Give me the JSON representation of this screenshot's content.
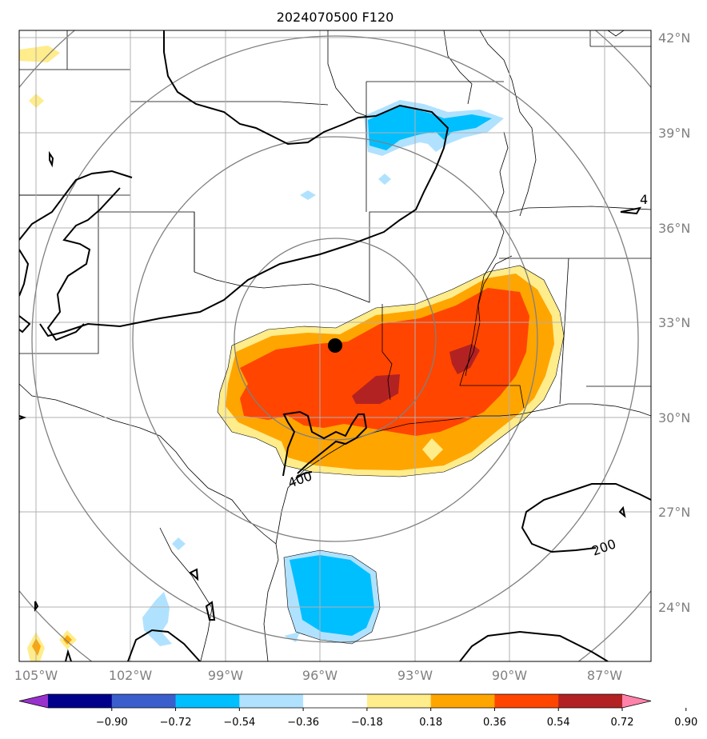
{
  "title": "2024070500 F120",
  "lat_labels": [
    "42°N",
    "39°N",
    "36°N",
    "33°N",
    "30°N",
    "27°N",
    "24°N"
  ],
  "lon_labels": [
    "105°W",
    "102°W",
    "99°W",
    "96°W",
    "93°W",
    "90°W",
    "87°W"
  ],
  "colorbar": {
    "ticks": [
      "−0.90",
      "−0.72",
      "−0.54",
      "−0.36",
      "−0.18",
      "0.18",
      "0.36",
      "0.54",
      "0.72",
      "0.90"
    ],
    "colors": [
      "#9932cc",
      "#00008b",
      "#3a5fcd",
      "#00bfff",
      "#b0e2ff",
      "#ffffff",
      "#ffec8b",
      "#ffa500",
      "#ff4500",
      "#b22222",
      "#ff82ab"
    ]
  },
  "contour_labels": [
    "400",
    "200",
    "4"
  ],
  "marker": "center-point"
}
